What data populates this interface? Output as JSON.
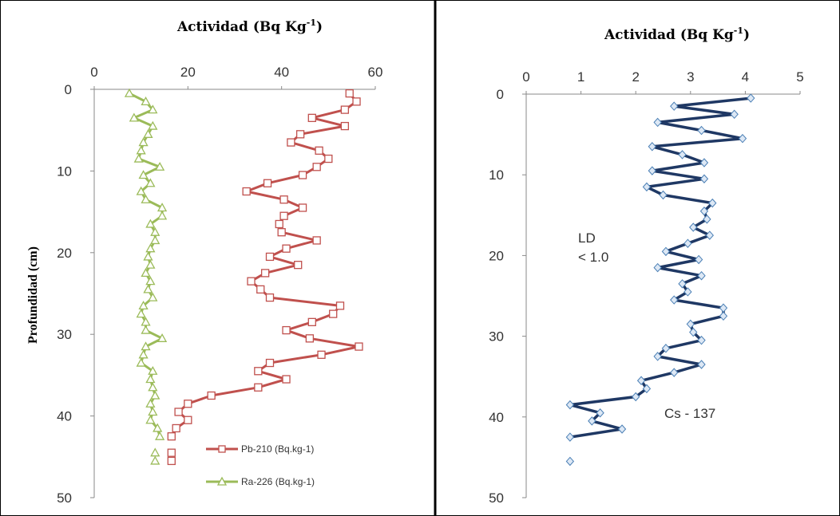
{
  "chart_data": [
    {
      "type": "line",
      "title": "Actividad (Bq Kg",
      "title_sup": "-1",
      "title_end": ")",
      "ylabel": "Profundidad (cm)",
      "xlim": [
        0,
        60
      ],
      "ylim": [
        0,
        50
      ],
      "y_reversed": true,
      "x_ticks": [
        "0",
        "20",
        "40",
        "60"
      ],
      "y_ticks": [
        "0",
        "10",
        "20",
        "30",
        "40",
        "50"
      ],
      "x_tick_values": [
        0,
        20,
        40,
        60
      ],
      "y_tick_values": [
        0,
        10,
        20,
        30,
        40,
        50
      ],
      "grid": false,
      "legend_position": "bottom-right",
      "series": [
        {
          "name": "Pb-210 (Bq.kg-1)",
          "color": "#c0504d",
          "marker": "square",
          "points": [
            [
              54.5,
              0.5
            ],
            [
              56,
              1.5
            ],
            [
              53.5,
              2.5
            ],
            [
              46.5,
              3.5
            ],
            [
              53.5,
              4.5
            ],
            [
              44,
              5.5
            ],
            [
              42,
              6.5
            ],
            [
              48,
              7.5
            ],
            [
              50,
              8.5
            ],
            [
              47.5,
              9.5
            ],
            [
              44.5,
              10.5
            ],
            [
              37,
              11.5
            ],
            [
              32.5,
              12.5
            ],
            [
              40.5,
              13.5
            ],
            [
              44.5,
              14.5
            ],
            [
              40.5,
              15.5
            ],
            [
              39.5,
              16.5
            ],
            [
              40,
              17.5
            ],
            [
              47.5,
              18.5
            ],
            [
              41,
              19.5
            ],
            [
              37.5,
              20.5
            ],
            [
              43.5,
              21.5
            ],
            [
              36.5,
              22.5
            ],
            [
              33.5,
              23.5
            ],
            [
              35.5,
              24.5
            ],
            [
              37.5,
              25.5
            ],
            [
              52.5,
              26.5
            ],
            [
              51,
              27.5
            ],
            [
              46.5,
              28.5
            ],
            [
              41,
              29.5
            ],
            [
              46,
              30.5
            ],
            [
              56.5,
              31.5
            ],
            [
              48.5,
              32.5
            ],
            [
              37.5,
              33.5
            ],
            [
              35,
              34.5
            ],
            [
              41,
              35.5
            ],
            [
              35,
              36.5
            ],
            [
              25,
              37.5
            ],
            [
              20,
              38.5
            ],
            [
              18,
              39.5
            ],
            [
              20,
              40.5
            ],
            [
              17.5,
              41.5
            ],
            [
              16.5,
              42.5
            ]
          ],
          "extra_points": [
            [
              16.5,
              44.5
            ],
            [
              16.5,
              45.5
            ]
          ]
        },
        {
          "name": "Ra-226 (Bq.kg-1)",
          "color": "#9bbb59",
          "marker": "triangle",
          "points": [
            [
              7.5,
              0.5
            ],
            [
              11,
              1.5
            ],
            [
              12.5,
              2.5
            ],
            [
              8.5,
              3.5
            ],
            [
              12.5,
              4.5
            ],
            [
              11.5,
              5.5
            ],
            [
              10.5,
              6.5
            ],
            [
              10,
              7.5
            ],
            [
              9.5,
              8.5
            ],
            [
              14,
              9.5
            ],
            [
              10.5,
              10.5
            ],
            [
              12,
              11.5
            ],
            [
              10,
              12.5
            ],
            [
              11,
              13.5
            ],
            [
              14.5,
              14.5
            ],
            [
              14.5,
              15.5
            ],
            [
              12,
              16.5
            ],
            [
              13,
              17.5
            ],
            [
              13,
              18.5
            ],
            [
              12,
              19.5
            ],
            [
              11.5,
              20.5
            ],
            [
              12,
              21.5
            ],
            [
              11,
              22.5
            ],
            [
              12,
              23.5
            ],
            [
              11.5,
              24.5
            ],
            [
              12.5,
              25.5
            ],
            [
              10.5,
              26.5
            ],
            [
              10,
              27.5
            ],
            [
              11,
              28.5
            ],
            [
              11,
              29.5
            ],
            [
              14.5,
              30.5
            ],
            [
              11,
              31.5
            ],
            [
              10.5,
              32.5
            ],
            [
              10,
              33.5
            ],
            [
              12.5,
              34.5
            ],
            [
              12,
              35.5
            ],
            [
              12.5,
              36.5
            ],
            [
              13,
              37.5
            ],
            [
              12,
              38.5
            ],
            [
              12.5,
              39.5
            ],
            [
              12,
              40.5
            ],
            [
              13.5,
              41.5
            ],
            [
              14,
              42.5
            ]
          ],
          "extra_points": [
            [
              13,
              44.5
            ],
            [
              13,
              45.5
            ]
          ]
        }
      ]
    },
    {
      "type": "line",
      "title": "Actividad (Bq Kg",
      "title_sup": "-1",
      "title_end": ")",
      "ylabel": "",
      "xlim": [
        0,
        5
      ],
      "ylim": [
        0,
        50
      ],
      "y_reversed": true,
      "x_ticks": [
        "0",
        "1",
        "2",
        "3",
        "4",
        "5"
      ],
      "y_ticks": [
        "0",
        "10",
        "20",
        "30",
        "40",
        "50"
      ],
      "x_tick_values": [
        0,
        1,
        2,
        3,
        4,
        5
      ],
      "y_tick_values": [
        0,
        10,
        20,
        30,
        40,
        50
      ],
      "grid": false,
      "annotations": [
        "LD",
        "< 1.0",
        "Cs - 137"
      ],
      "series": [
        {
          "name": "Cs - 137",
          "color": "#1f3864",
          "marker": "diamond",
          "points": [
            [
              4.1,
              0.5
            ],
            [
              2.7,
              1.5
            ],
            [
              3.8,
              2.5
            ],
            [
              2.4,
              3.5
            ],
            [
              3.2,
              4.5
            ],
            [
              3.95,
              5.5
            ],
            [
              2.3,
              6.5
            ],
            [
              2.85,
              7.5
            ],
            [
              3.25,
              8.5
            ],
            [
              2.3,
              9.5
            ],
            [
              3.25,
              10.5
            ],
            [
              2.2,
              11.5
            ],
            [
              2.5,
              12.5
            ],
            [
              3.4,
              13.5
            ],
            [
              3.25,
              14.5
            ],
            [
              3.3,
              15.5
            ],
            [
              3.05,
              16.5
            ],
            [
              3.35,
              17.5
            ],
            [
              2.95,
              18.5
            ],
            [
              2.55,
              19.5
            ],
            [
              3.15,
              20.5
            ],
            [
              2.4,
              21.5
            ],
            [
              3.2,
              22.5
            ],
            [
              2.85,
              23.5
            ],
            [
              2.95,
              24.5
            ],
            [
              2.7,
              25.5
            ],
            [
              3.6,
              26.5
            ],
            [
              3.6,
              27.5
            ],
            [
              3.0,
              28.5
            ],
            [
              3.05,
              29.5
            ],
            [
              3.2,
              30.5
            ],
            [
              2.55,
              31.5
            ],
            [
              2.4,
              32.5
            ],
            [
              3.2,
              33.5
            ],
            [
              2.7,
              34.5
            ],
            [
              2.1,
              35.5
            ],
            [
              2.2,
              36.5
            ],
            [
              2.0,
              37.5
            ],
            [
              0.8,
              38.5
            ],
            [
              1.35,
              39.5
            ],
            [
              1.2,
              40.5
            ],
            [
              1.75,
              41.5
            ],
            [
              0.8,
              42.5
            ]
          ],
          "extra_points": [
            [
              0.8,
              45.5
            ]
          ]
        }
      ]
    }
  ]
}
